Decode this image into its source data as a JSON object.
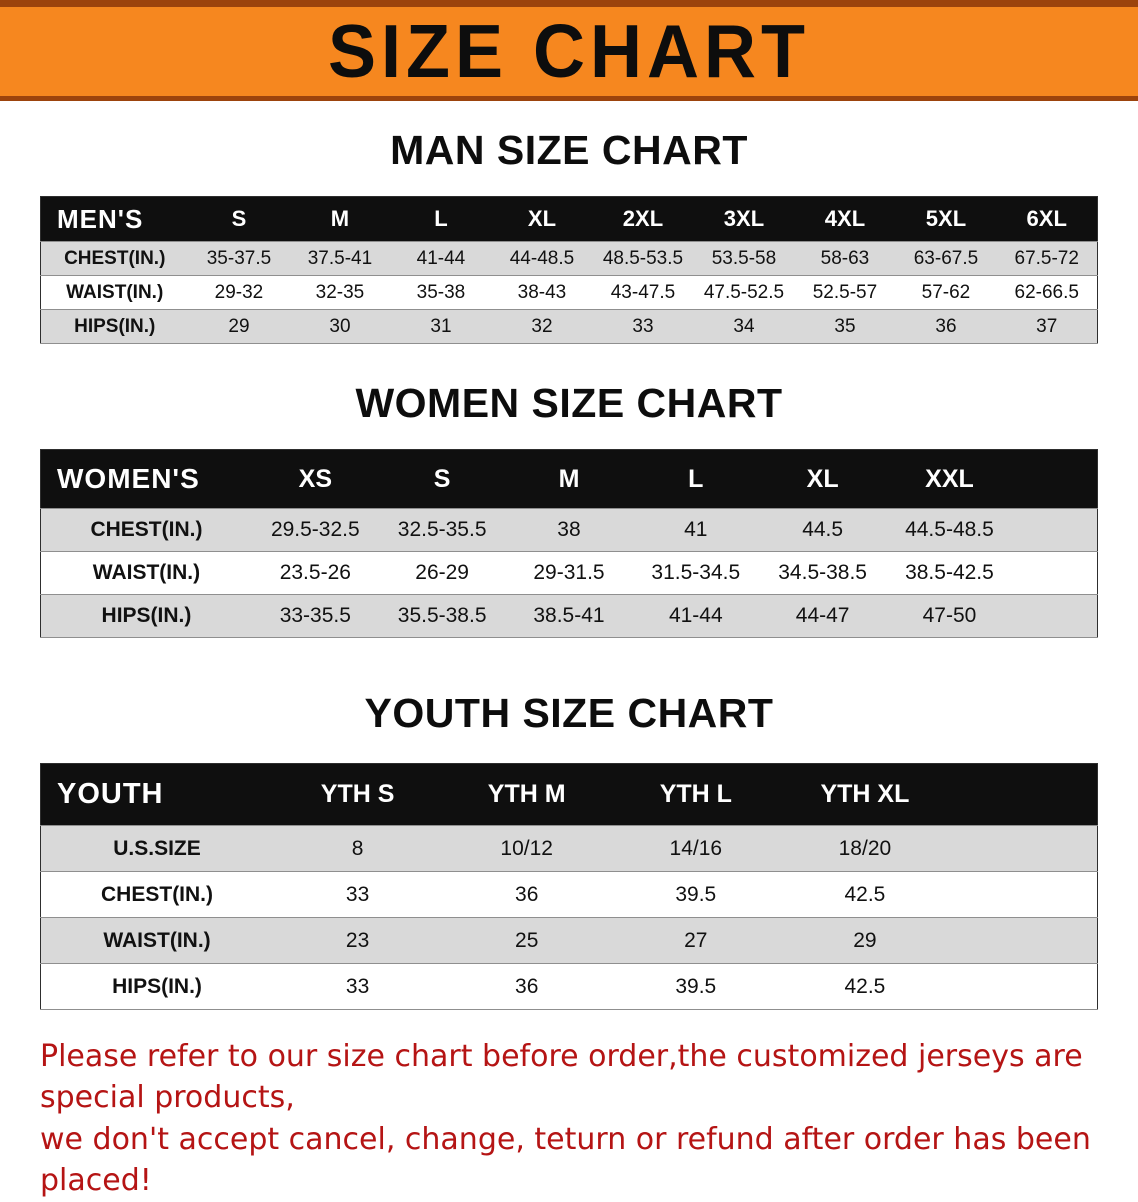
{
  "banner": {
    "title": "SIZE CHART",
    "bg_color": "#f6871f",
    "border_color": "#9c430c"
  },
  "sections": [
    {
      "heading": "MAN SIZE CHART",
      "table": {
        "corner": "MEN'S",
        "columns": [
          "S",
          "M",
          "L",
          "XL",
          "2XL",
          "3XL",
          "4XL",
          "5XL",
          "6XL"
        ],
        "rows": [
          {
            "label": "CHEST(IN.)",
            "values": [
              "35-37.5",
              "37.5-41",
              "41-44",
              "44-48.5",
              "48.5-53.5",
              "53.5-58",
              "58-63",
              "63-67.5",
              "67.5-72"
            ]
          },
          {
            "label": "WAIST(IN.)",
            "values": [
              "29-32",
              "32-35",
              "35-38",
              "38-43",
              "43-47.5",
              "47.5-52.5",
              "52.5-57",
              "57-62",
              "62-66.5"
            ]
          },
          {
            "label": "HIPS(IN.)",
            "values": [
              "29",
              "30",
              "31",
              "32",
              "33",
              "34",
              "35",
              "36",
              "37"
            ]
          }
        ]
      }
    },
    {
      "heading": "WOMEN SIZE CHART",
      "table": {
        "corner": "WOMEN'S",
        "columns": [
          "XS",
          "S",
          "M",
          "L",
          "XL",
          "XXL"
        ],
        "rows": [
          {
            "label": "CHEST(IN.)",
            "values": [
              "29.5-32.5",
              "32.5-35.5",
              "38",
              "41",
              "44.5",
              "44.5-48.5"
            ]
          },
          {
            "label": "WAIST(IN.)",
            "values": [
              "23.5-26",
              "26-29",
              "29-31.5",
              "31.5-34.5",
              "34.5-38.5",
              "38.5-42.5"
            ]
          },
          {
            "label": "HIPS(IN.)",
            "values": [
              "33-35.5",
              "35.5-38.5",
              "38.5-41",
              "41-44",
              "44-47",
              "47-50"
            ]
          }
        ]
      }
    },
    {
      "heading": "YOUTH SIZE CHART",
      "table": {
        "corner": "YOUTH",
        "columns": [
          "YTH S",
          "YTH M",
          "YTH L",
          "YTH XL"
        ],
        "rows": [
          {
            "label": "U.S.SIZE",
            "values": [
              "8",
              "10/12",
              "14/16",
              "18/20"
            ]
          },
          {
            "label": "CHEST(IN.)",
            "values": [
              "33",
              "36",
              "39.5",
              "42.5"
            ]
          },
          {
            "label": "WAIST(IN.)",
            "values": [
              "23",
              "25",
              "27",
              "29"
            ]
          },
          {
            "label": "HIPS(IN.)",
            "values": [
              "33",
              "36",
              "39.5",
              "42.5"
            ]
          }
        ]
      }
    }
  ],
  "colors": {
    "header_row_bg": "#0f0f0f",
    "stripe_row_bg": "#d9d9d9",
    "footer_text": "#b51414"
  },
  "footer": {
    "line1": "Please refer to our size chart before order,the customized jerseys are special products,",
    "line2": "we don't accept cancel, change, teturn or refund after order has been placed!"
  }
}
